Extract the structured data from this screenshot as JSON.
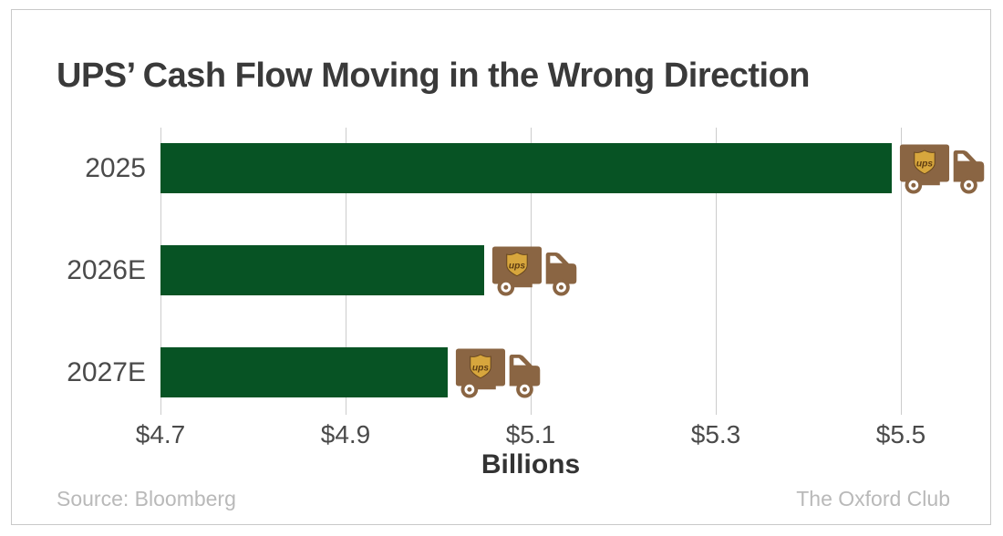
{
  "title": "UPS’ Cash Flow Moving in the Wrong Direction",
  "footer": {
    "source": "Source: Bloomberg",
    "brand": "The Oxford Club"
  },
  "icons": {
    "truck": "ups-truck-icon",
    "shield_label": "ups"
  },
  "colors": {
    "bar_green": "#075324",
    "truck_brown": "#8a6543",
    "shield_gold": "#d7a63d",
    "shield_outline": "#63431c",
    "shield_text": "#5d3c12",
    "grid": "#cccccc",
    "title_text": "#3a3a3a",
    "axis_text": "#4a4a4a",
    "footer_text": "#b9b9b9",
    "frame_border": "#c9c9c9"
  },
  "chart_data": {
    "type": "bar",
    "orientation": "horizontal",
    "title": "UPS’ Cash Flow Moving in the Wrong Direction",
    "categories": [
      "2025",
      "2026E",
      "2027E"
    ],
    "values": [
      5.49,
      5.05,
      5.01
    ],
    "xlabel": "Billions",
    "ylabel": "",
    "ticks": [
      "$4.7",
      "$4.9",
      "$5.1",
      "$5.3",
      "$5.5"
    ],
    "tick_values": [
      4.7,
      4.9,
      5.1,
      5.3,
      5.5
    ],
    "xlim": [
      4.7,
      5.6
    ],
    "grid": true,
    "legend": false,
    "bar_color": "#075324",
    "annotation": "each bar capped with a UPS delivery-truck icon"
  }
}
